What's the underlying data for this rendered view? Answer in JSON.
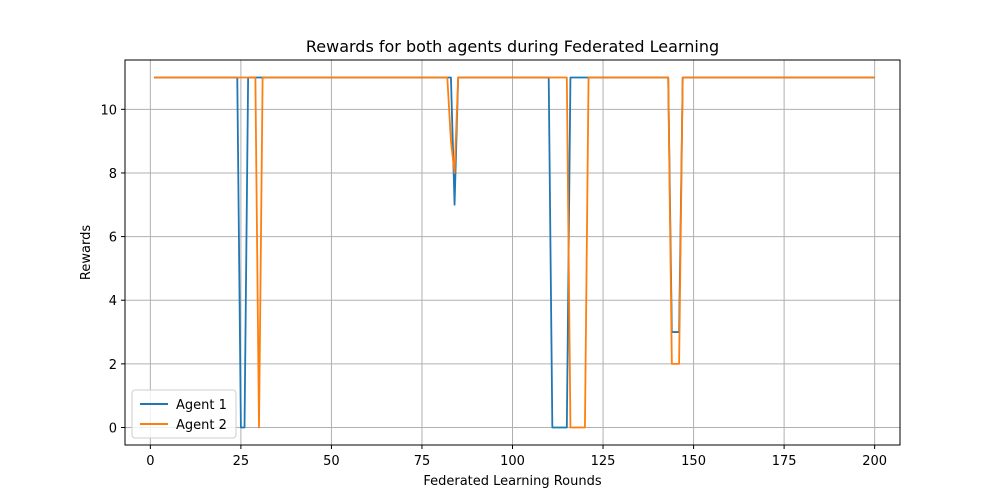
{
  "chart_data": {
    "type": "line",
    "title": "Rewards for both agents during Federated Learning",
    "xlabel": "Federated Learning Rounds",
    "ylabel": "Rewards",
    "xlim": [
      -7,
      207
    ],
    "ylim": [
      -0.55,
      11.55
    ],
    "xticks": [
      0,
      25,
      50,
      75,
      100,
      125,
      150,
      175,
      200
    ],
    "yticks": [
      0,
      2,
      4,
      6,
      8,
      10
    ],
    "grid": true,
    "legend_position": "lower-left",
    "series": [
      {
        "name": "Agent 1",
        "color": "#1f77b4",
        "points": [
          [
            1,
            11
          ],
          [
            24,
            11
          ],
          [
            25,
            0
          ],
          [
            26,
            0
          ],
          [
            27,
            11
          ],
          [
            83,
            11
          ],
          [
            84,
            7
          ],
          [
            85,
            11
          ],
          [
            110,
            11
          ],
          [
            111,
            0
          ],
          [
            115,
            0
          ],
          [
            116,
            11
          ],
          [
            143,
            11
          ],
          [
            144,
            3
          ],
          [
            146,
            3
          ],
          [
            147,
            11
          ],
          [
            200,
            11
          ]
        ]
      },
      {
        "name": "Agent 2",
        "color": "#ff7f0e",
        "points": [
          [
            1,
            11
          ],
          [
            29,
            11
          ],
          [
            30,
            0
          ],
          [
            31,
            11
          ],
          [
            82,
            11
          ],
          [
            83,
            9
          ],
          [
            84,
            8
          ],
          [
            85,
            11
          ],
          [
            115,
            11
          ],
          [
            116,
            0
          ],
          [
            120,
            0
          ],
          [
            121,
            11
          ],
          [
            143,
            11
          ],
          [
            144,
            2
          ],
          [
            146,
            2
          ],
          [
            147,
            11
          ],
          [
            200,
            11
          ]
        ]
      }
    ]
  }
}
